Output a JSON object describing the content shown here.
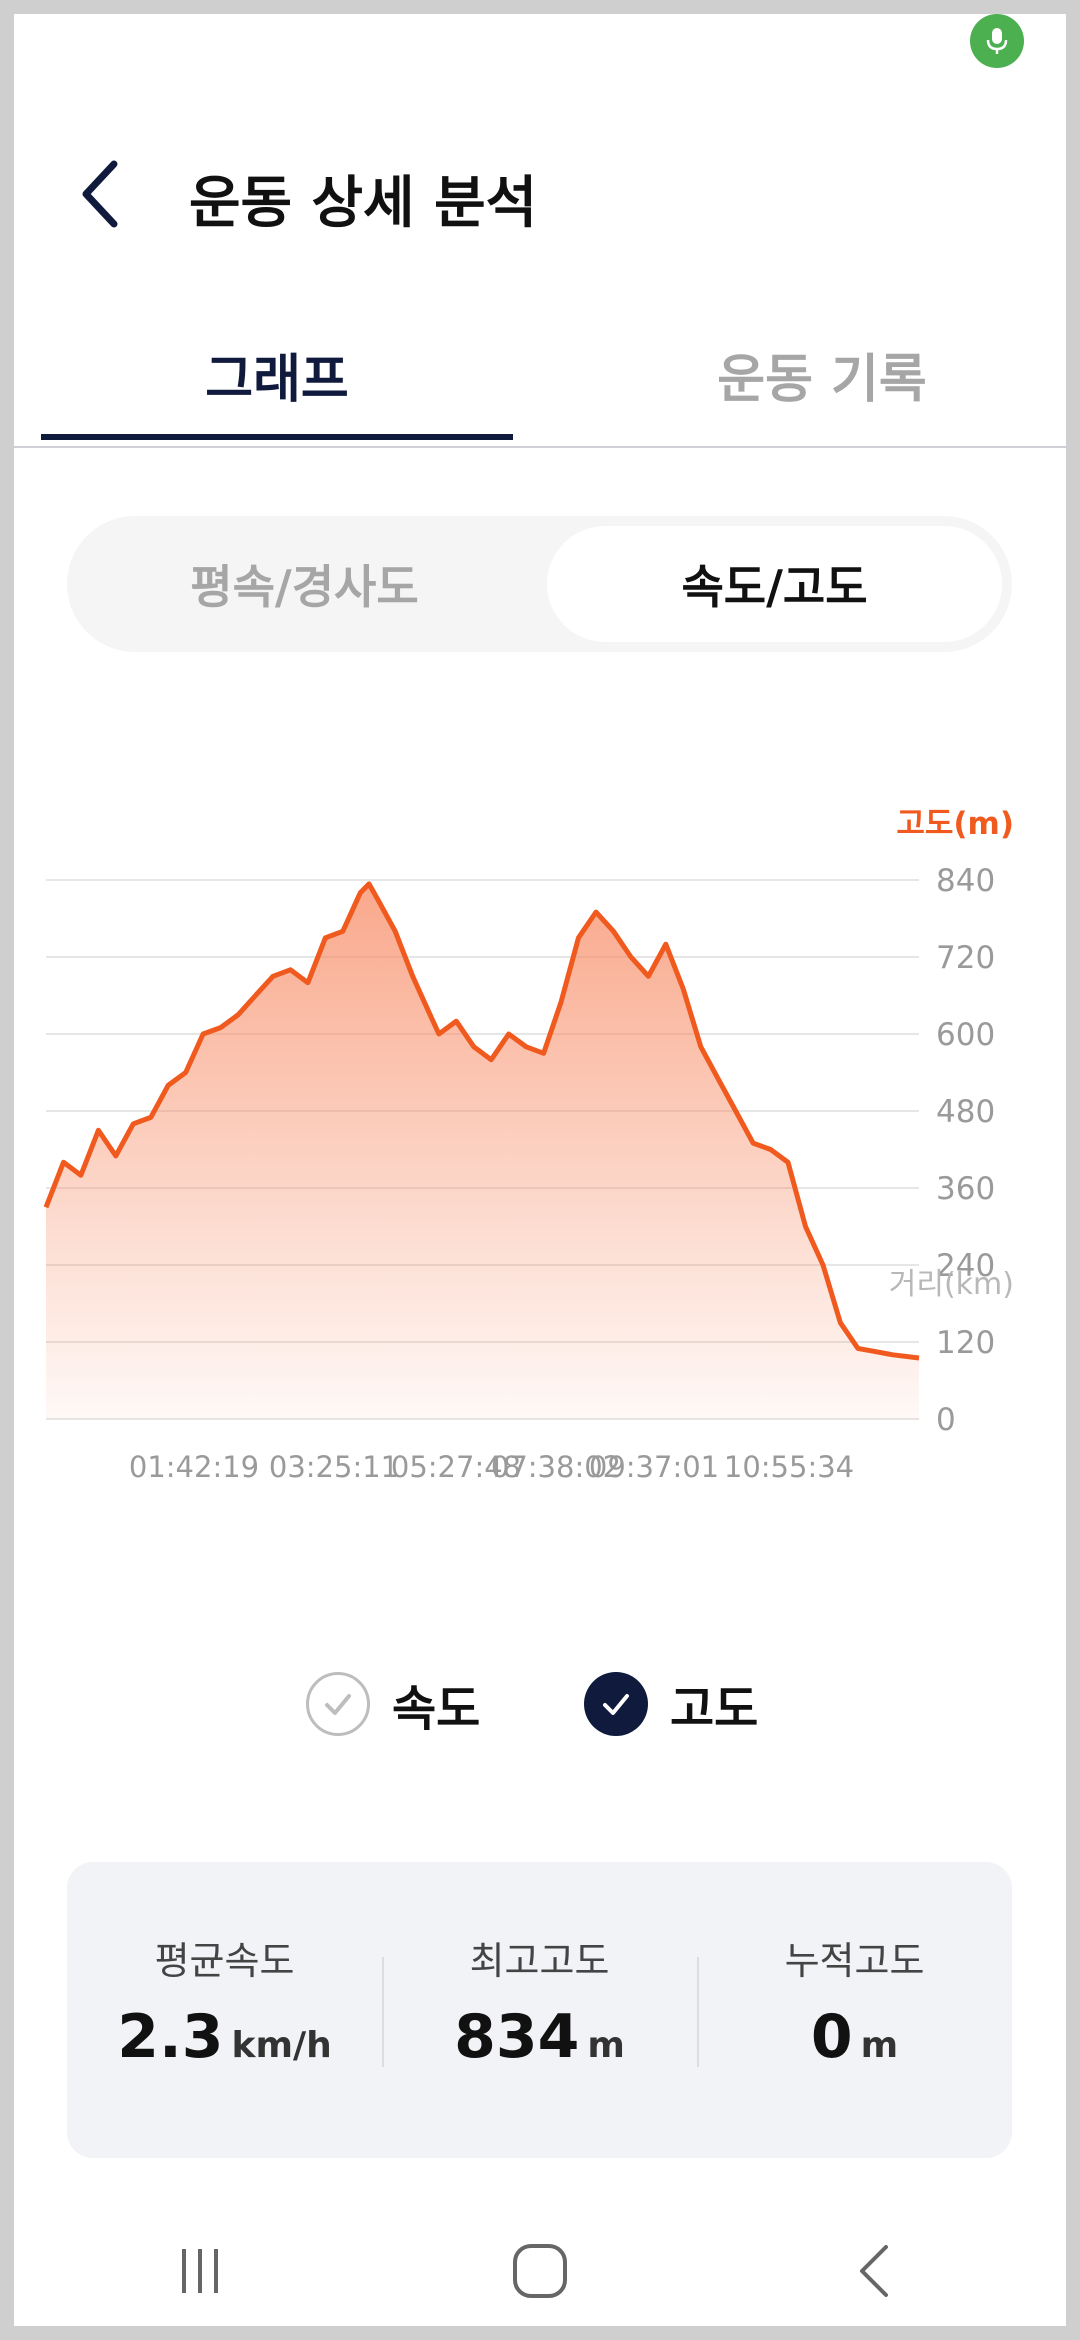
{
  "header": {
    "title": "운동 상세 분석",
    "back_icon": "chevron-left-icon"
  },
  "tabs": [
    {
      "label": "그래프",
      "selected": true
    },
    {
      "label": "운동 기록",
      "selected": false
    }
  ],
  "segment": {
    "options": [
      "평속/경사도",
      "속도/고도"
    ],
    "selected": "속도/고도"
  },
  "chart_data": {
    "type": "area",
    "series": [
      {
        "name": "고도"
      }
    ],
    "ylabel": "고도(m)",
    "xlabel": "거리(km)",
    "ylim": [
      0,
      840
    ],
    "yticks": [
      0,
      120,
      240,
      360,
      480,
      600,
      720,
      840
    ],
    "xtick_labels": [
      "01:42:19",
      "03:25:11",
      "05:27:48",
      "07:38:02",
      "09:37:01",
      "10:55:34"
    ],
    "x": [
      0,
      0.02,
      0.04,
      0.06,
      0.08,
      0.1,
      0.12,
      0.14,
      0.16,
      0.18,
      0.2,
      0.22,
      0.24,
      0.26,
      0.28,
      0.3,
      0.32,
      0.34,
      0.36,
      0.37,
      0.38,
      0.4,
      0.42,
      0.44,
      0.45,
      0.47,
      0.49,
      0.51,
      0.53,
      0.55,
      0.57,
      0.59,
      0.61,
      0.63,
      0.65,
      0.67,
      0.69,
      0.71,
      0.73,
      0.75,
      0.77,
      0.79,
      0.81,
      0.83,
      0.85,
      0.87,
      0.89,
      0.91,
      0.93,
      0.95,
      0.97,
      1.0
    ],
    "y": [
      330,
      400,
      380,
      450,
      410,
      460,
      470,
      520,
      540,
      600,
      610,
      630,
      660,
      690,
      700,
      680,
      750,
      760,
      820,
      834,
      810,
      760,
      690,
      630,
      600,
      620,
      580,
      560,
      600,
      580,
      570,
      650,
      750,
      790,
      760,
      720,
      690,
      740,
      670,
      580,
      530,
      480,
      430,
      420,
      400,
      300,
      240,
      150,
      110,
      105,
      100,
      95
    ],
    "color": "#f05a1e"
  },
  "legend": {
    "speed": {
      "label": "속도",
      "checked": false
    },
    "altitude": {
      "label": "고도",
      "checked": true
    }
  },
  "stats": [
    {
      "label": "평균속도",
      "value": "2.3",
      "unit": "km/h"
    },
    {
      "label": "최고고도",
      "value": "834",
      "unit": "m"
    },
    {
      "label": "누적고도",
      "value": "0",
      "unit": "m"
    }
  ],
  "navbar": [
    "recent-apps-icon",
    "home-icon",
    "back-icon"
  ]
}
